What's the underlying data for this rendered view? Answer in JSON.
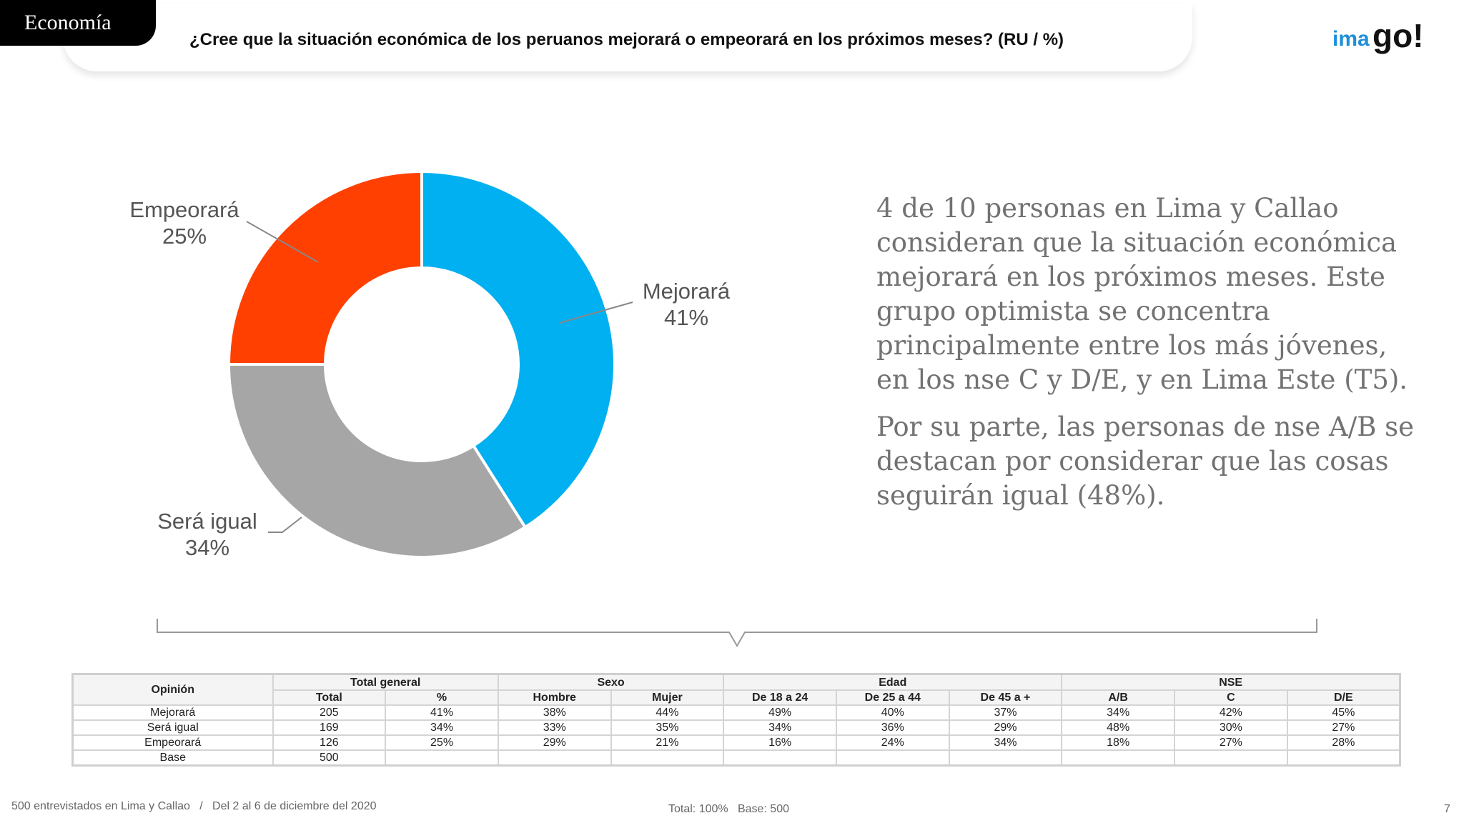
{
  "header": {
    "section": "Economía",
    "question": "¿Cree que la situación económica de los peruanos mejorará o empeorará en los próximos meses?  (RU  /  %)",
    "logo_text": "imago!"
  },
  "chart_data": {
    "type": "pie",
    "style": "donut",
    "slices": [
      {
        "label": "Mejorará",
        "value": 41,
        "value_label": "41%",
        "color": "#00B0F0"
      },
      {
        "label": "Será igual",
        "value": 34,
        "value_label": "34%",
        "color": "#A6A6A6"
      },
      {
        "label": "Empeorará",
        "value": 25,
        "value_label": "25%",
        "color": "#FF4000"
      }
    ]
  },
  "summary": {
    "paragraph1": "4 de 10 personas en Lima y Callao consideran que la situación económica mejorará en los próximos meses. Este grupo optimista se concentra principalmente entre los más jóvenes, en los nse C y D/E, y en Lima Este (T5).",
    "paragraph2": "Por su parte, las personas de nse A/B se destacan por considerar que las cosas seguirán igual (48%)."
  },
  "table": {
    "opinion_header": "Opinión",
    "groups": [
      "Total general",
      "Sexo",
      "Edad",
      "NSE"
    ],
    "subheaders": [
      "Total",
      "%",
      "Hombre",
      "Mujer",
      "De 18 a 24",
      "De 25 a 44",
      "De 45 a +",
      "A/B",
      "C",
      "D/E"
    ],
    "rows": [
      {
        "label": "Mejorará",
        "cells": [
          "205",
          "41%",
          "38%",
          "44%",
          "49%",
          "40%",
          "37%",
          "34%",
          "42%",
          "45%"
        ]
      },
      {
        "label": "Será igual",
        "cells": [
          "169",
          "34%",
          "33%",
          "35%",
          "34%",
          "36%",
          "29%",
          "48%",
          "30%",
          "27%"
        ]
      },
      {
        "label": "Empeorará",
        "cells": [
          "126",
          "25%",
          "29%",
          "21%",
          "16%",
          "24%",
          "34%",
          "18%",
          "27%",
          "28%"
        ]
      },
      {
        "label": "Base",
        "cells": [
          "500",
          "",
          "",
          "",
          "",
          "",
          "",
          "",
          "",
          ""
        ]
      }
    ]
  },
  "footer": {
    "left": "500 entrevistados en Lima y Callao   /   Del 2 al 6 de diciembre del 2020",
    "middle": "Total: 100%   Base: 500",
    "page": "7"
  }
}
